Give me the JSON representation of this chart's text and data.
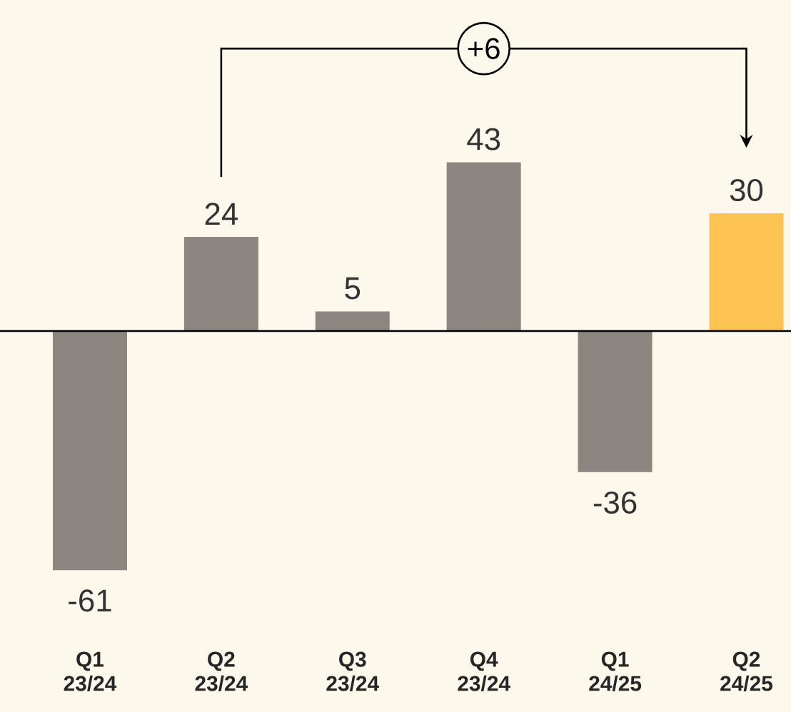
{
  "chart_data": {
    "type": "bar",
    "categories": [
      "Q1 23/24",
      "Q2 23/24",
      "Q3 23/24",
      "Q4 23/24",
      "Q1 24/25",
      "Q2 24/25"
    ],
    "values": [
      -61,
      24,
      5,
      43,
      -36,
      30
    ],
    "colors": [
      "#8c8681",
      "#8c8681",
      "#8c8681",
      "#8c8681",
      "#8c8681",
      "#fec453"
    ],
    "data_labels": true,
    "annotations": [
      "+6"
    ]
  }
}
